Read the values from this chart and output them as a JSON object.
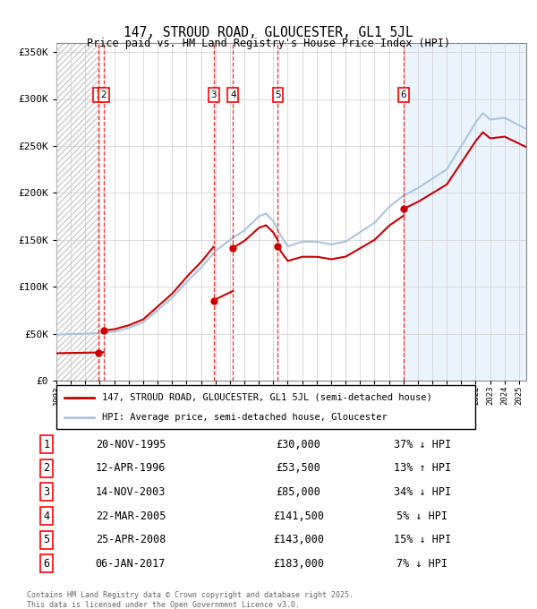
{
  "title1": "147, STROUD ROAD, GLOUCESTER, GL1 5JL",
  "title2": "Price paid vs. HM Land Registry's House Price Index (HPI)",
  "legend_line1": "147, STROUD ROAD, GLOUCESTER, GL1 5JL (semi-detached house)",
  "legend_line2": "HPI: Average price, semi-detached house, Gloucester",
  "footer1": "Contains HM Land Registry data © Crown copyright and database right 2025.",
  "footer2": "This data is licensed under the Open Government Licence v3.0.",
  "sales": [
    {
      "num": 1,
      "date_num": 1995.89,
      "price": 30000,
      "label": "20-NOV-1995",
      "price_str": "£30,000",
      "hpi_str": "37% ↓ HPI"
    },
    {
      "num": 2,
      "date_num": 1996.28,
      "price": 53500,
      "label": "12-APR-1996",
      "price_str": "£53,500",
      "hpi_str": "13% ↑ HPI"
    },
    {
      "num": 3,
      "date_num": 2003.87,
      "price": 85000,
      "label": "14-NOV-2003",
      "price_str": "£85,000",
      "hpi_str": "34% ↓ HPI"
    },
    {
      "num": 4,
      "date_num": 2005.22,
      "price": 141500,
      "label": "22-MAR-2005",
      "price_str": "£141,500",
      "hpi_str": "5% ↓ HPI"
    },
    {
      "num": 5,
      "date_num": 2008.32,
      "price": 143000,
      "label": "25-APR-2008",
      "price_str": "£143,000",
      "hpi_str": "15% ↓ HPI"
    },
    {
      "num": 6,
      "date_num": 2017.02,
      "price": 183000,
      "label": "06-JAN-2017",
      "price_str": "£183,000",
      "hpi_str": "7% ↓ HPI"
    }
  ],
  "hpi_color": "#aac4e0",
  "sale_color": "#cc0000",
  "grid_color": "#cccccc",
  "bg_color": "#ddeeff",
  "ylim": [
    0,
    360000
  ],
  "xlim_start": 1993.0,
  "xlim_end": 2025.5
}
